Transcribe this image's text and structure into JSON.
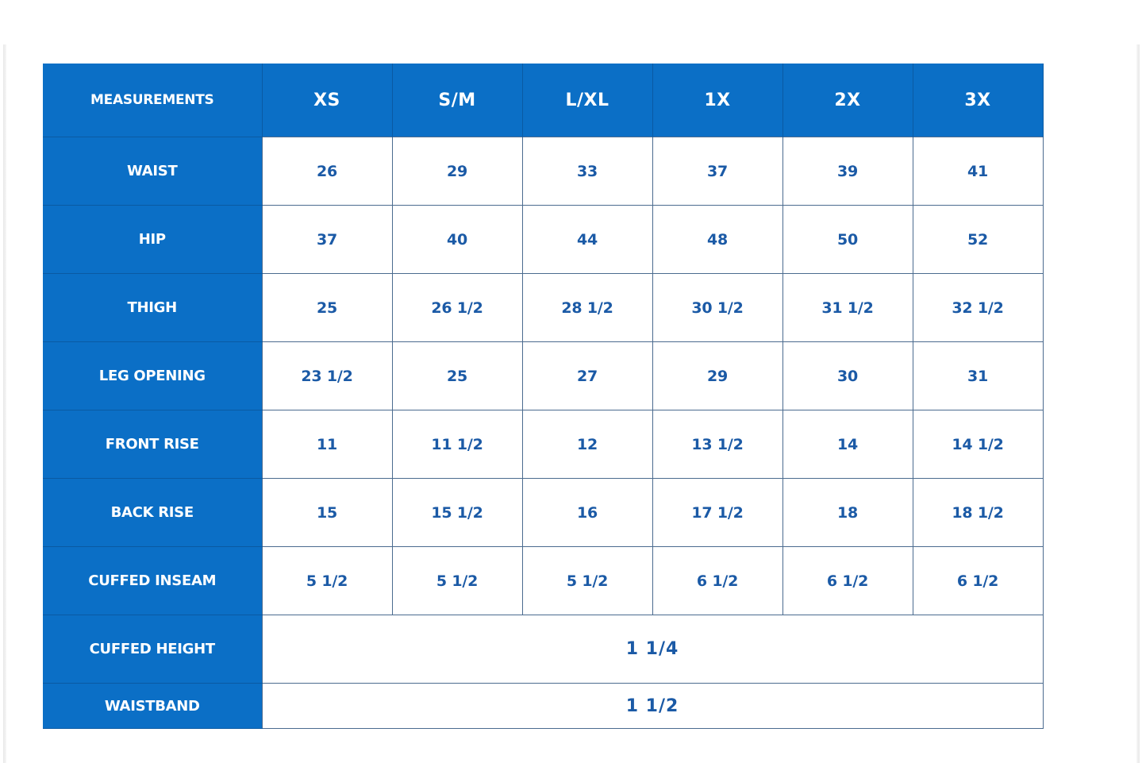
{
  "table": {
    "corner_label": "MEASUREMENTS",
    "sizes": [
      "XS",
      "S/M",
      "L/XL",
      "1X",
      "2X",
      "3X"
    ],
    "rows": [
      {
        "label": "WAIST",
        "values": [
          "26",
          "29",
          "33",
          "37",
          "39",
          "41"
        ]
      },
      {
        "label": "HIP",
        "values": [
          "37",
          "40",
          "44",
          "48",
          "50",
          "52"
        ]
      },
      {
        "label": "THIGH",
        "values": [
          "25",
          "26 1/2",
          "28 1/2",
          "30 1/2",
          "31 1/2",
          "32 1/2"
        ]
      },
      {
        "label": "LEG OPENING",
        "values": [
          "23 1/2",
          "25",
          "27",
          "29",
          "30",
          "31"
        ]
      },
      {
        "label": "FRONT RISE",
        "values": [
          "11",
          "11 1/2",
          "12",
          "13 1/2",
          "14",
          "14 1/2"
        ]
      },
      {
        "label": "BACK RISE",
        "values": [
          "15",
          "15 1/2",
          "16",
          "17 1/2",
          "18",
          "18 1/2"
        ]
      },
      {
        "label": "CUFFED INSEAM",
        "values": [
          "5 1/2",
          "5 1/2",
          "5 1/2",
          "6 1/2",
          "6 1/2",
          "6 1/2"
        ]
      }
    ],
    "merged_rows": [
      {
        "label": "CUFFED HEIGHT",
        "value": "1 1/4"
      },
      {
        "label": "WAISTBAND",
        "value": "1 1/2"
      }
    ]
  },
  "colors": {
    "header_blue": "#0b6fc6",
    "value_text": "#1b5aa6",
    "grid_line": "#4b6b8f"
  }
}
